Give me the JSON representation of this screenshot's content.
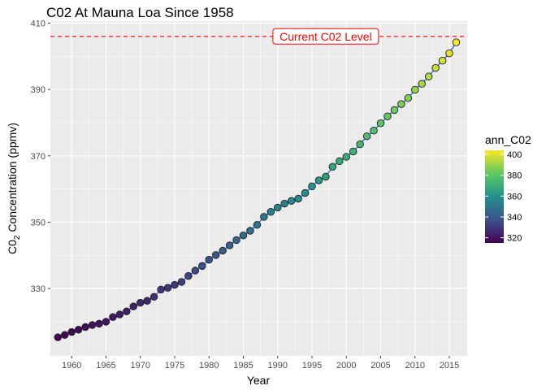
{
  "chart_data": {
    "type": "scatter",
    "title": "C02 At Mauna Loa Since 1958",
    "xlabel": "Year",
    "ylabel_main": "C0",
    "ylabel_sub": "2",
    "ylabel_rest": " Concentration (ppmv)",
    "xlim": [
      1956.9,
      2017.6
    ],
    "ylim": [
      309.7,
      410.6
    ],
    "x_ticks": [
      1960,
      1965,
      1970,
      1975,
      1980,
      1985,
      1990,
      1995,
      2000,
      2005,
      2010,
      2015
    ],
    "y_ticks": [
      330,
      350,
      370,
      390,
      410
    ],
    "grid": true,
    "background": "#ebebeb",
    "smooth_line_color": "#3366ff",
    "hline": {
      "y": 406,
      "color": "#ff0000",
      "style": "dashed"
    },
    "annotation": {
      "text": "Current C02 Level",
      "x": 1997,
      "y": 406,
      "color": "#ff0000"
    },
    "legend": {
      "title": "ann_C02",
      "position": "right",
      "ticks": [
        320,
        340,
        360,
        380,
        400
      ],
      "range": [
        315,
        404
      ],
      "colormap": "viridis"
    },
    "series": [
      {
        "x": [
          1958,
          1959,
          1960,
          1961,
          1962,
          1963,
          1964,
          1965,
          1966,
          1967,
          1968,
          1969,
          1970,
          1971,
          1972,
          1973,
          1974,
          1975,
          1976,
          1977,
          1978,
          1979,
          1980,
          1981,
          1982,
          1983,
          1984,
          1985,
          1986,
          1987,
          1988,
          1989,
          1990,
          1991,
          1992,
          1993,
          1994,
          1995,
          1996,
          1997,
          1998,
          1999,
          2000,
          2001,
          2002,
          2003,
          2004,
          2005,
          2006,
          2007,
          2008,
          2009,
          2010,
          2011,
          2012,
          2013,
          2014,
          2015,
          2016
        ],
        "values": [
          315.3,
          316.0,
          316.9,
          317.6,
          318.4,
          319.0,
          319.4,
          320.0,
          321.4,
          322.2,
          323.1,
          324.6,
          325.7,
          326.3,
          327.5,
          329.7,
          330.2,
          331.1,
          332.0,
          333.8,
          335.4,
          336.8,
          338.7,
          340.1,
          341.4,
          343.0,
          344.6,
          346.0,
          347.4,
          349.2,
          351.6,
          353.1,
          354.4,
          355.6,
          356.4,
          357.1,
          358.8,
          360.8,
          362.6,
          363.7,
          366.7,
          368.4,
          369.7,
          371.3,
          373.5,
          375.9,
          377.6,
          379.8,
          381.9,
          383.8,
          385.6,
          387.4,
          389.9,
          391.7,
          393.9,
          396.5,
          398.7,
          400.9,
          404.2
        ]
      }
    ]
  }
}
